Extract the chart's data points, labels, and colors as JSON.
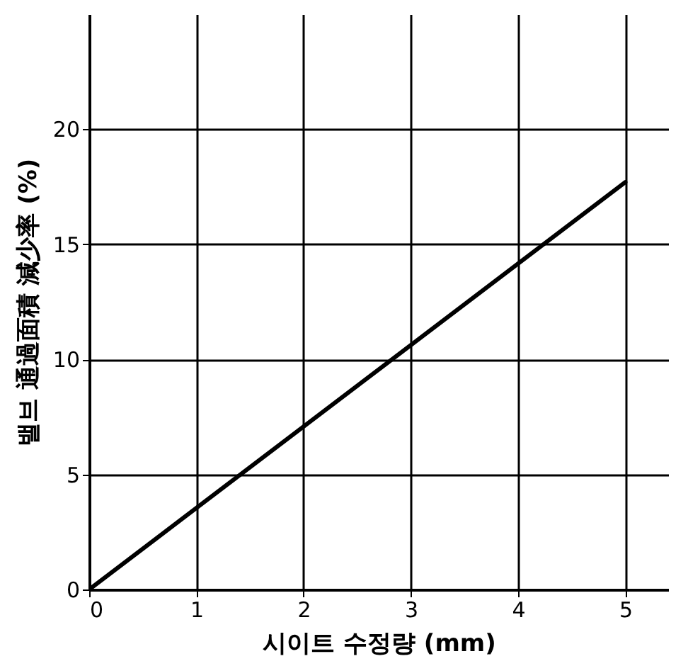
{
  "chart_data": {
    "type": "line",
    "xlabel": "시이트 수정량 (mm)",
    "ylabel": "밸브 通過面積 減少率 (%)",
    "x": [
      0,
      5
    ],
    "series": [
      {
        "color": "#000000",
        "values": [
          0,
          17.7
        ]
      }
    ],
    "xlim": [
      0,
      5.4
    ],
    "xticks": [
      0,
      1,
      2,
      3,
      4,
      5
    ],
    "ylim": [
      0,
      25
    ],
    "yticks": [
      0,
      5,
      10,
      15,
      20
    ],
    "grid": true
  }
}
